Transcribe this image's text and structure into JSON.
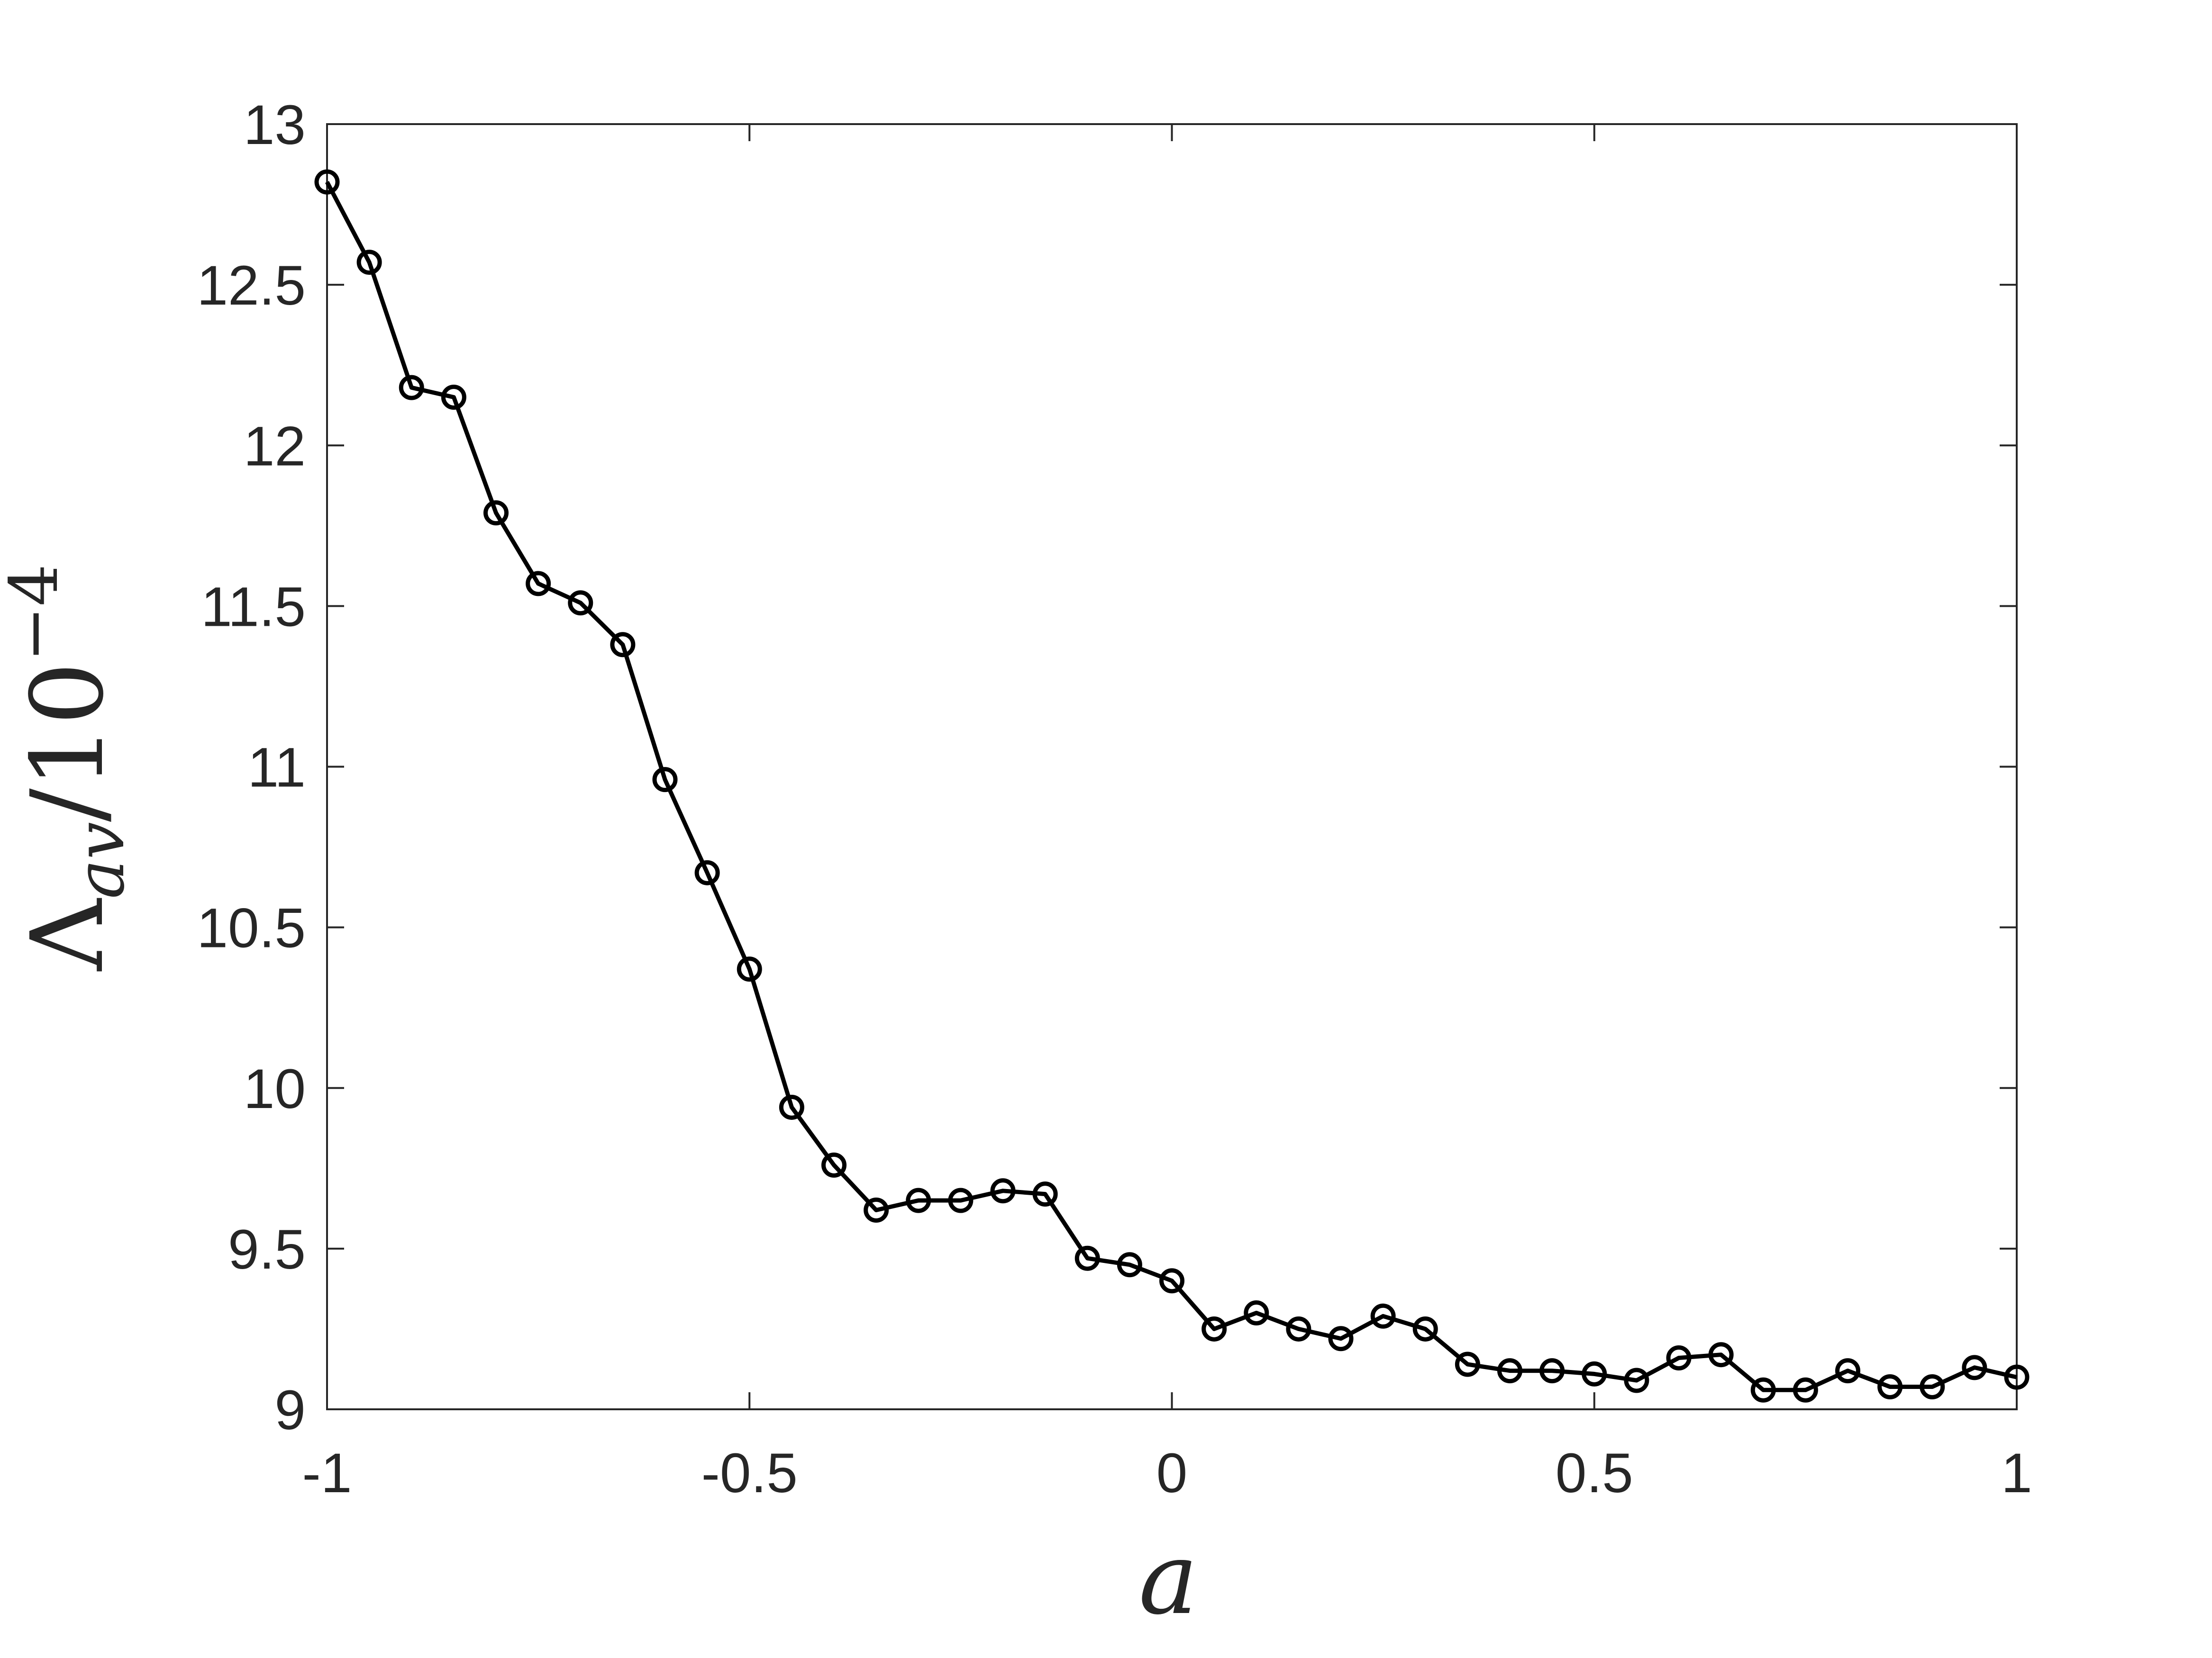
{
  "chart_data": {
    "type": "line",
    "xlabel": {
      "var": "a"
    },
    "ylabel": {
      "main": "Λ",
      "sub": "av",
      "sep": "/10",
      "exp": "−4"
    },
    "xlim": [
      -1,
      1
    ],
    "ylim": [
      9,
      13
    ],
    "xticks": [
      -1,
      -0.5,
      0,
      0.5,
      1
    ],
    "xtick_labels": [
      "-1",
      "-0.5",
      "0",
      "0.5",
      "1"
    ],
    "yticks": [
      9,
      9.5,
      10,
      10.5,
      11,
      11.5,
      12,
      12.5,
      13
    ],
    "ytick_labels": [
      "9",
      "9.5",
      "10",
      "10.5",
      "11",
      "11.5",
      "12",
      "12.5",
      "13"
    ],
    "grid": false,
    "marker": "circle",
    "line_color": "#000000",
    "series": [
      {
        "x": [
          -1,
          -0.95,
          -0.9,
          -0.85,
          -0.8,
          -0.75,
          -0.7,
          -0.65,
          -0.6,
          -0.55,
          -0.5,
          -0.45,
          -0.4,
          -0.35,
          -0.3,
          -0.25,
          -0.2,
          -0.15,
          -0.1,
          -0.05,
          0,
          0.05,
          0.1,
          0.15,
          0.2,
          0.25,
          0.3,
          0.35,
          0.4,
          0.45,
          0.5,
          0.55,
          0.6,
          0.65,
          0.7,
          0.75,
          0.8,
          0.85,
          0.9,
          0.95,
          1
        ],
        "y": [
          12.82,
          12.57,
          12.18,
          12.15,
          11.79,
          11.57,
          11.51,
          11.38,
          10.96,
          10.67,
          10.37,
          9.94,
          9.76,
          9.62,
          9.65,
          9.65,
          9.68,
          9.67,
          9.47,
          9.45,
          9.4,
          9.25,
          9.3,
          9.25,
          9.22,
          9.29,
          9.25,
          9.14,
          9.12,
          9.12,
          9.11,
          9.09,
          9.16,
          9.17,
          9.06,
          9.06,
          9.12,
          9.07,
          9.07,
          9.13,
          9.1
        ]
      }
    ]
  }
}
